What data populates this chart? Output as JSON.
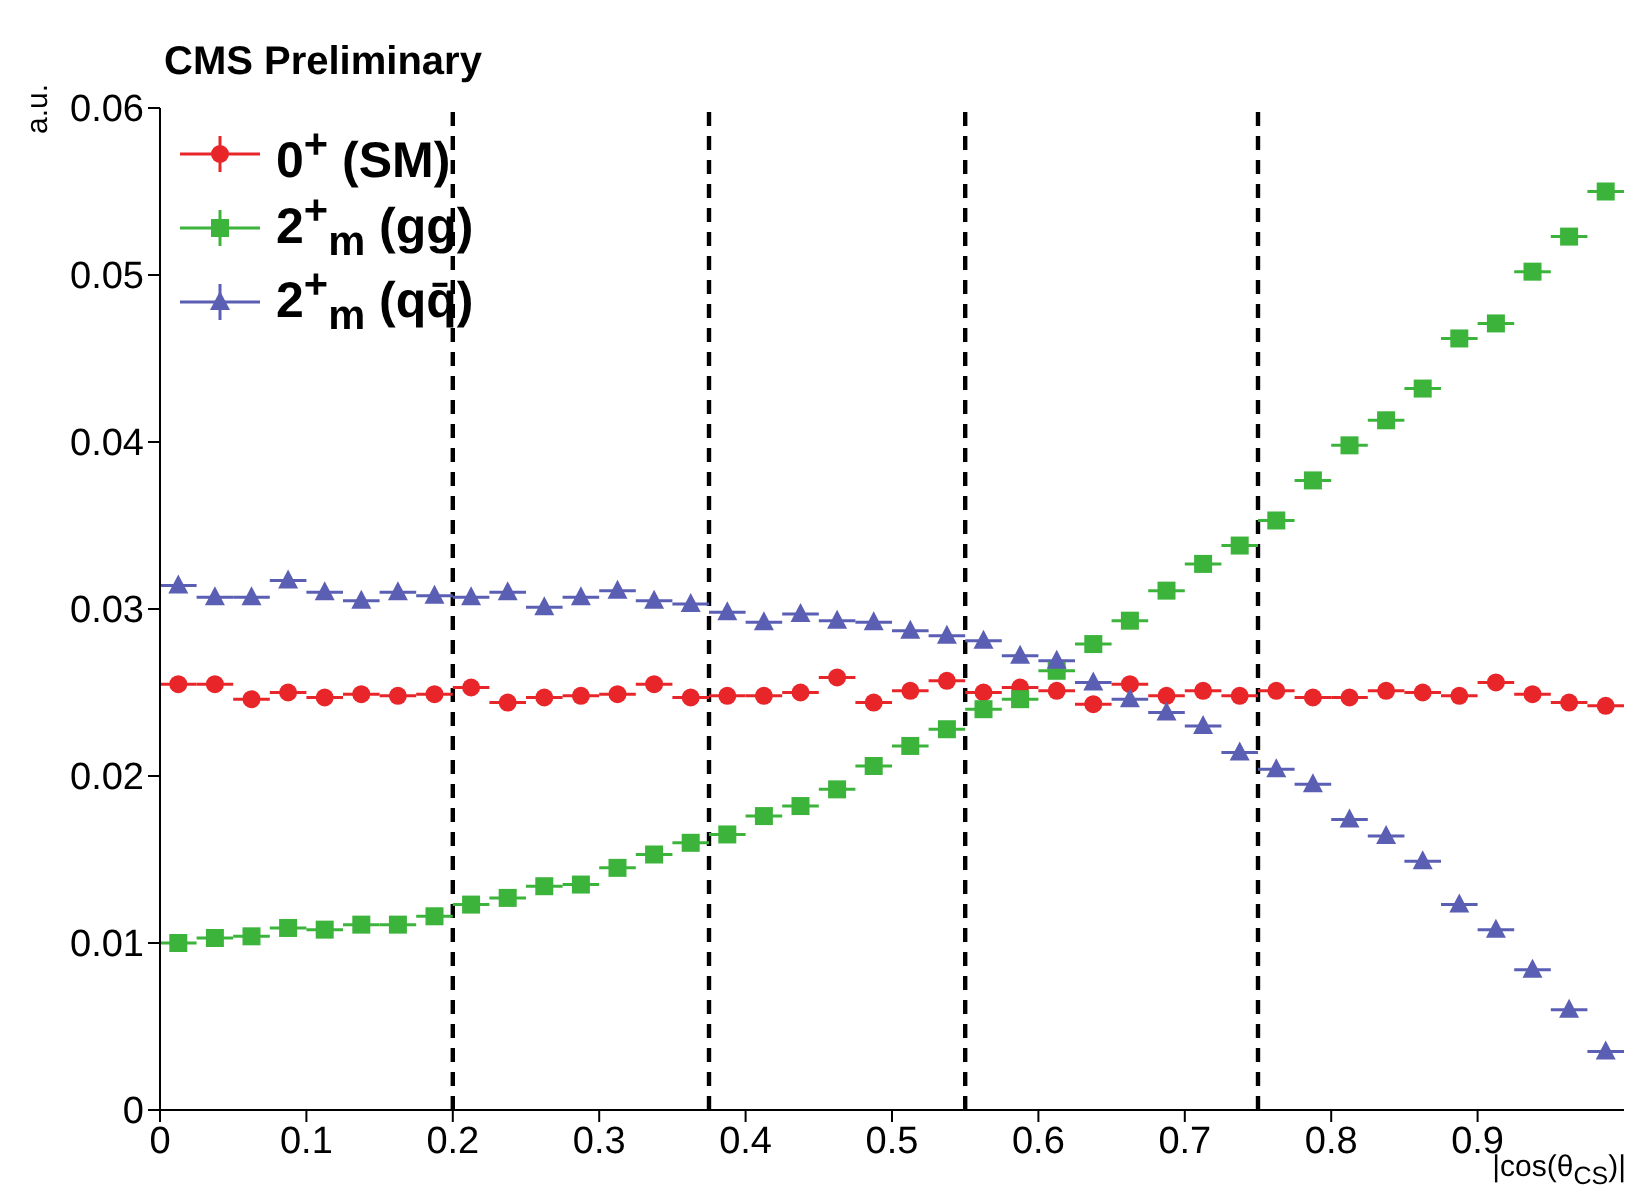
{
  "chart_data": {
    "type": "scatter",
    "title": "CMS Preliminary",
    "xlabel": "|cos(θ$_{CS}$)|",
    "ylabel": "a.u.",
    "x": [
      0.0125,
      0.0375,
      0.0625,
      0.0875,
      0.1125,
      0.1375,
      0.1625,
      0.1875,
      0.2125,
      0.2375,
      0.2625,
      0.2875,
      0.3125,
      0.3375,
      0.3625,
      0.3875,
      0.4125,
      0.4375,
      0.4625,
      0.4875,
      0.5125,
      0.5375,
      0.5625,
      0.5875,
      0.6125,
      0.6375,
      0.6625,
      0.6875,
      0.7125,
      0.7375,
      0.7625,
      0.7875,
      0.8125,
      0.8375,
      0.8625,
      0.8875,
      0.9125,
      0.9375,
      0.9625,
      0.9875
    ],
    "series": [
      {
        "name": "0$^{+}$ (SM)",
        "color": "#e8262a",
        "marker": "circle",
        "values": [
          0.0255,
          0.0255,
          0.0246,
          0.025,
          0.0247,
          0.0249,
          0.0248,
          0.0249,
          0.0253,
          0.0244,
          0.0247,
          0.0248,
          0.0249,
          0.0255,
          0.0247,
          0.0248,
          0.0248,
          0.025,
          0.0259,
          0.0244,
          0.0251,
          0.0257,
          0.025,
          0.0253,
          0.0251,
          0.0243,
          0.0255,
          0.0248,
          0.0251,
          0.0248,
          0.0251,
          0.0247,
          0.0247,
          0.0251,
          0.025,
          0.0248,
          0.0256,
          0.0249,
          0.0244,
          0.0242
        ],
        "xerrors": [
          0.0125,
          0.0125,
          0.0125,
          0.0125,
          0.0125,
          0.0125,
          0.0125,
          0.0125,
          0.0125,
          0.0125,
          0.0125,
          0.0125,
          0.0125,
          0.0125,
          0.0125,
          0.0125,
          0.0125,
          0.0125,
          0.0125,
          0.0125,
          0.0125,
          0.0125,
          0.0125,
          0.0125,
          0.0125,
          0.0125,
          0.0125,
          0.0125,
          0.0125,
          0.0125,
          0.0125,
          0.0125,
          0.0125,
          0.0125,
          0.0125,
          0.0125,
          0.0125,
          0.0125,
          0.0125,
          0.0125
        ]
      },
      {
        "name": "2$^{+}$$_{m}$ (gg)",
        "color": "#3cb43c",
        "marker": "square",
        "values": [
          0.01,
          0.0103,
          0.0104,
          0.0109,
          0.0108,
          0.0111,
          0.0111,
          0.0116,
          0.0123,
          0.0127,
          0.0134,
          0.0135,
          0.0145,
          0.0153,
          0.016,
          0.0165,
          0.0176,
          0.0182,
          0.0192,
          0.0206,
          0.0218,
          0.0228,
          0.024,
          0.0246,
          0.0263,
          0.0279,
          0.0293,
          0.0311,
          0.0327,
          0.0338,
          0.0353,
          0.0377,
          0.0398,
          0.0413,
          0.0432,
          0.0462,
          0.0471,
          0.0502,
          0.0523,
          0.055
        ],
        "xerrors": [
          0.0125,
          0.0125,
          0.0125,
          0.0125,
          0.0125,
          0.0125,
          0.0125,
          0.0125,
          0.0125,
          0.0125,
          0.0125,
          0.0125,
          0.0125,
          0.0125,
          0.0125,
          0.0125,
          0.0125,
          0.0125,
          0.0125,
          0.0125,
          0.0125,
          0.0125,
          0.0125,
          0.0125,
          0.0125,
          0.0125,
          0.0125,
          0.0125,
          0.0125,
          0.0125,
          0.0125,
          0.0125,
          0.0125,
          0.0125,
          0.0125,
          0.0125,
          0.0125,
          0.0125,
          0.0125,
          0.0125
        ]
      },
      {
        "name": "2$^{+}$$_{m}$ (qq̄)",
        "color": "#5b5fb4",
        "marker": "triangle",
        "values": [
          0.0314,
          0.0307,
          0.0307,
          0.0317,
          0.031,
          0.0305,
          0.031,
          0.0308,
          0.0307,
          0.031,
          0.0301,
          0.0307,
          0.0311,
          0.0305,
          0.0303,
          0.0298,
          0.0292,
          0.0297,
          0.0293,
          0.0292,
          0.0287,
          0.0284,
          0.0281,
          0.0272,
          0.0269,
          0.0256,
          0.0246,
          0.0238,
          0.023,
          0.0214,
          0.0204,
          0.0195,
          0.0174,
          0.0164,
          0.0149,
          0.0123,
          0.0108,
          0.0084,
          0.006,
          0.0035
        ],
        "xerrors": [
          0.0125,
          0.0125,
          0.0125,
          0.0125,
          0.0125,
          0.0125,
          0.0125,
          0.0125,
          0.0125,
          0.0125,
          0.0125,
          0.0125,
          0.0125,
          0.0125,
          0.0125,
          0.0125,
          0.0125,
          0.0125,
          0.0125,
          0.0125,
          0.0125,
          0.0125,
          0.0125,
          0.0125,
          0.0125,
          0.0125,
          0.0125,
          0.0125,
          0.0125,
          0.0125,
          0.0125,
          0.0125,
          0.0125,
          0.0125,
          0.0125,
          0.0125,
          0.0125,
          0.0125,
          0.0125,
          0.0125
        ]
      }
    ],
    "xlim": [
      0,
      1
    ],
    "xticks": [
      0,
      0.1,
      0.2,
      0.3,
      0.4,
      0.5,
      0.6,
      0.7,
      0.8,
      0.9
    ],
    "ylim": [
      0,
      0.06
    ],
    "yticks": [
      0,
      0.01,
      0.02,
      0.03,
      0.04,
      0.05,
      0.06
    ],
    "ref_lines": [
      {
        "axis": "x",
        "value": 0.2,
        "color": "#000000",
        "line_style": "dashed"
      },
      {
        "axis": "x",
        "value": 0.375,
        "color": "#000000",
        "line_style": "dashed"
      },
      {
        "axis": "x",
        "value": 0.55,
        "color": "#000000",
        "line_style": "dashed"
      },
      {
        "axis": "x",
        "value": 0.75,
        "color": "#000000",
        "line_style": "dashed"
      }
    ],
    "legend": "top left",
    "grid": false
  }
}
